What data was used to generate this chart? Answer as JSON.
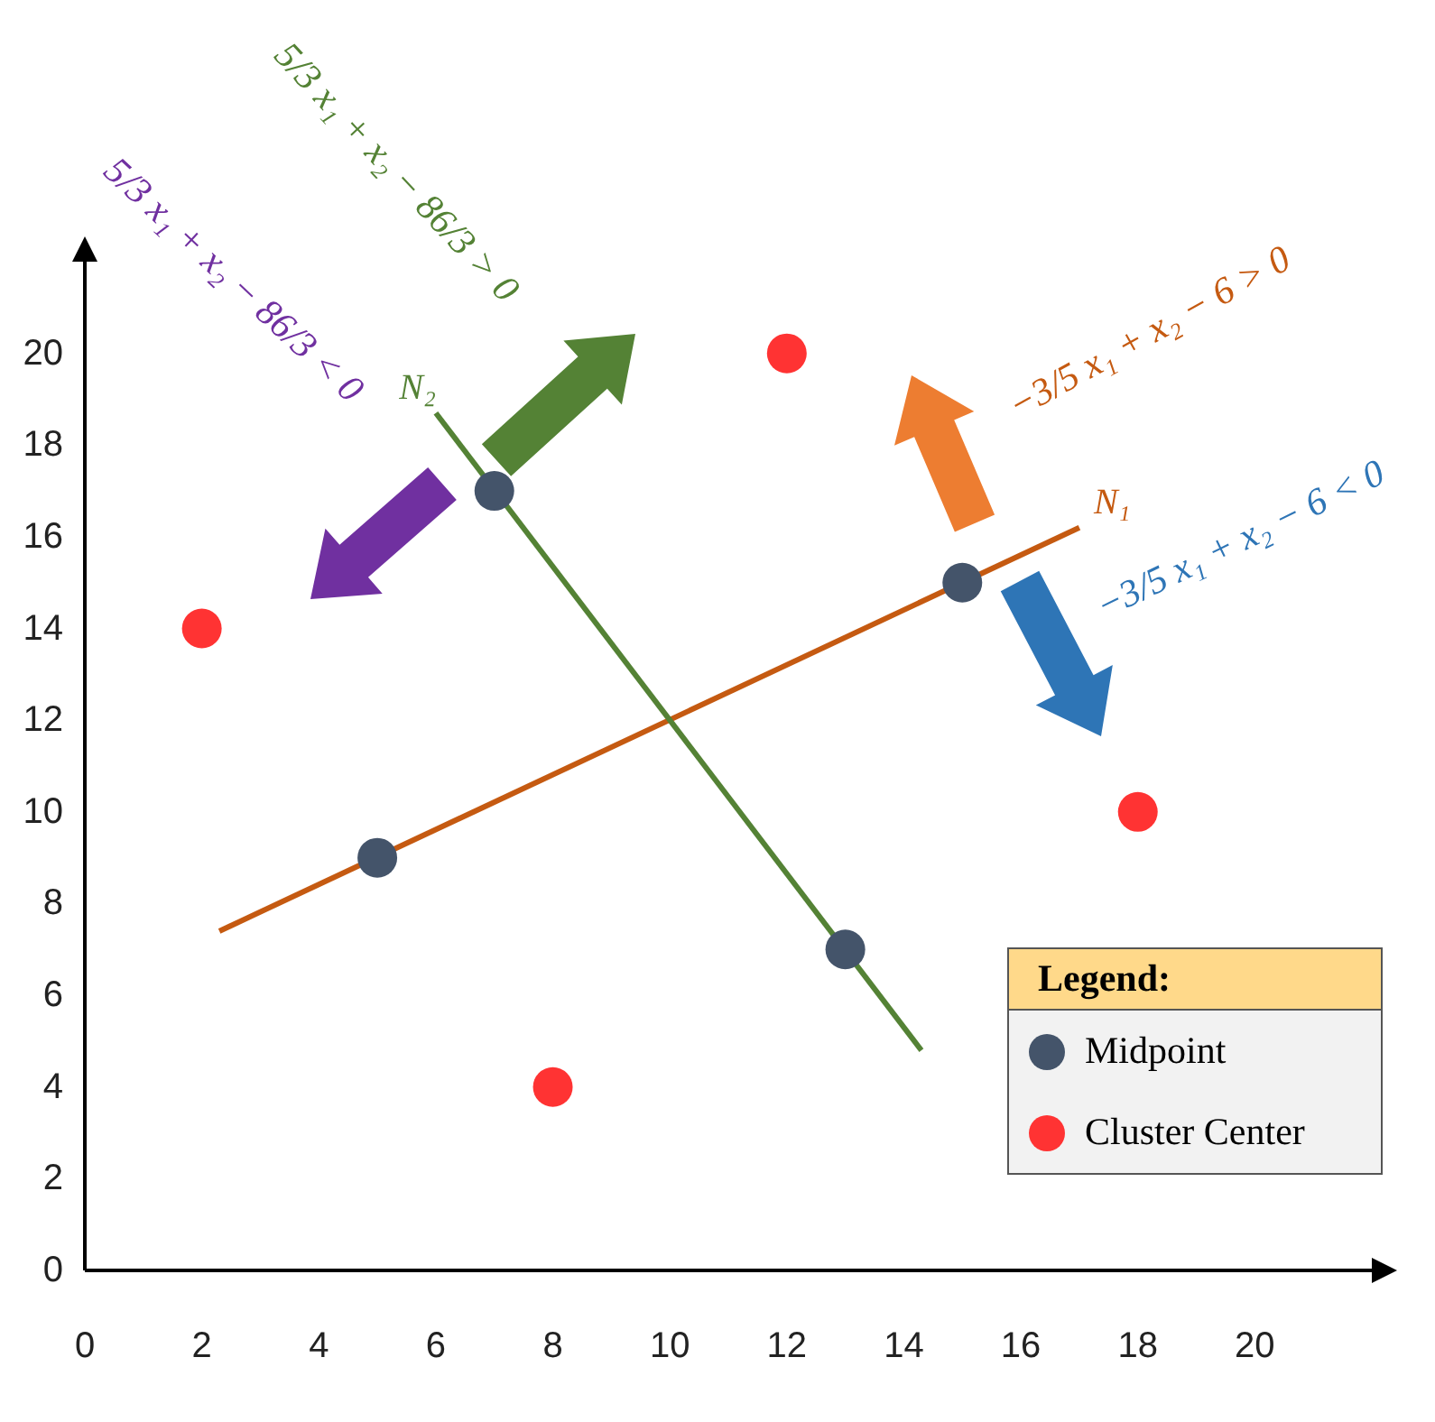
{
  "chart_data": {
    "type": "scatter",
    "legend_title": "Legend:",
    "legend": "bottom right",
    "grid": false,
    "xlim": [
      0,
      22
    ],
    "ylim": [
      0,
      22
    ],
    "xticks": [
      0,
      2,
      4,
      6,
      8,
      10,
      12,
      14,
      16,
      18,
      20
    ],
    "yticks": [
      0,
      2,
      4,
      6,
      8,
      10,
      12,
      14,
      16,
      18,
      20
    ],
    "annotations": [
      "5/3 x₁ + x₂ − 86/3 < 0",
      "5/3 x₁ + x₂ − 86/3 > 0",
      "−3/5 x₁ + x₂ − 6 > 0",
      "−3/5 x₁ + x₂ − 6 < 0"
    ],
    "series": [
      {
        "name": "N₁",
        "type": "line",
        "color": "#c55a11",
        "x": [
          2.3,
          17
        ],
        "values": [
          7.4,
          16.2
        ]
      },
      {
        "name": "N₂",
        "type": "line",
        "color": "#548235",
        "x": [
          6,
          14.3
        ],
        "values": [
          18.7,
          4.8
        ]
      },
      {
        "name": "Midpoint",
        "color": "#44546a",
        "x": [
          5,
          7,
          13,
          15
        ],
        "values": [
          9,
          17,
          7,
          15
        ]
      },
      {
        "name": "Cluster Center",
        "color": "#ff3333",
        "x": [
          2,
          8,
          12,
          18
        ],
        "values": [
          14,
          4,
          20,
          10
        ]
      }
    ]
  }
}
